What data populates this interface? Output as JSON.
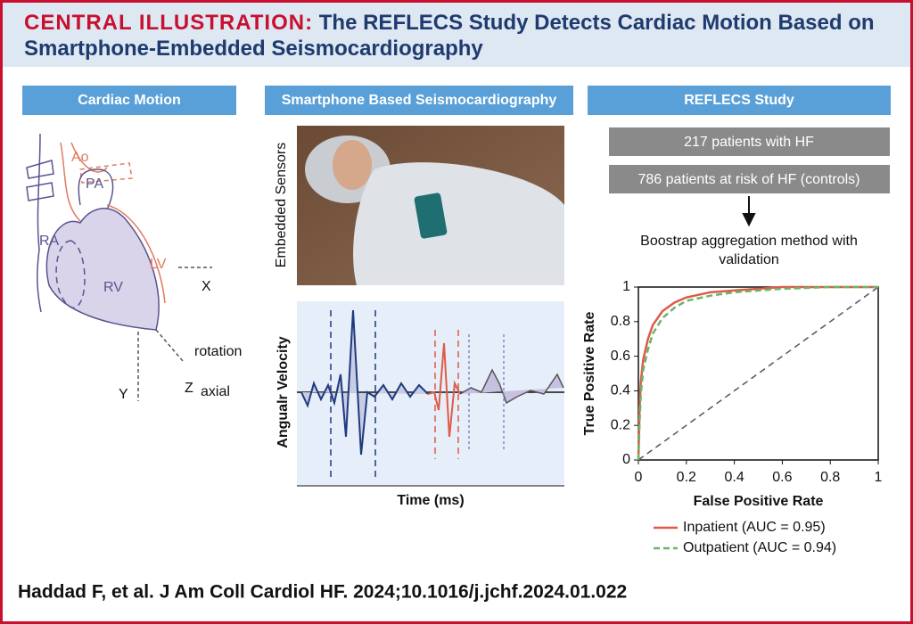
{
  "header": {
    "label": "CENTRAL ILLUSTRATION:",
    "title": "The REFLECS Study Detects Cardiac Motion Based on Smartphone-Embedded Seismocardiography"
  },
  "panels": [
    {
      "title": "Cardiac Motion"
    },
    {
      "title": "Smartphone Based Seismocardiography"
    },
    {
      "title": "REFLECS Study"
    }
  ],
  "heart": {
    "ao": "Ao",
    "pa": "PA",
    "ra": "RA",
    "lv": "LV",
    "rv": "RV",
    "x": "X",
    "rotation": "rotation",
    "y": "Y",
    "z": "Z",
    "axial": "axial"
  },
  "seismo": {
    "image_label": "Embedded Sensors",
    "y_label": "Angualr Velocity",
    "x_label": "Time (ms)"
  },
  "study": {
    "boxes": [
      "217 patients with HF",
      "786 patients at risk of HF (controls)"
    ],
    "method": "Boostrap aggregation method with validation"
  },
  "chart_data": {
    "type": "line",
    "x_label": "False Positive Rate",
    "y_label": "True Positive Rate",
    "xlim": [
      0,
      1
    ],
    "ylim": [
      0,
      1
    ],
    "xticks": [
      0,
      0.2,
      0.4,
      0.6,
      0.8,
      1
    ],
    "yticks": [
      0,
      0.2,
      0.4,
      0.6,
      0.8,
      1
    ],
    "x": [
      0,
      0.005,
      0.01,
      0.02,
      0.04,
      0.06,
      0.1,
      0.15,
      0.2,
      0.3,
      0.4,
      0.6,
      0.8,
      1
    ],
    "series": [
      {
        "name": "Inpatient (AUC = 0.95)",
        "color": "#e05a47",
        "dash": false,
        "values": [
          0,
          0.3,
          0.45,
          0.58,
          0.7,
          0.78,
          0.86,
          0.91,
          0.94,
          0.97,
          0.98,
          1,
          1,
          1
        ]
      },
      {
        "name": "Outpatient (AUC = 0.94)",
        "color": "#6ab56a",
        "dash": true,
        "values": [
          0,
          0.22,
          0.38,
          0.52,
          0.64,
          0.73,
          0.82,
          0.88,
          0.92,
          0.95,
          0.97,
          0.99,
          1,
          1
        ]
      }
    ]
  },
  "citation": "Haddad F, et al. J Am Coll Cardiol HF. 2024;10.1016/j.jchf.2024.01.022"
}
